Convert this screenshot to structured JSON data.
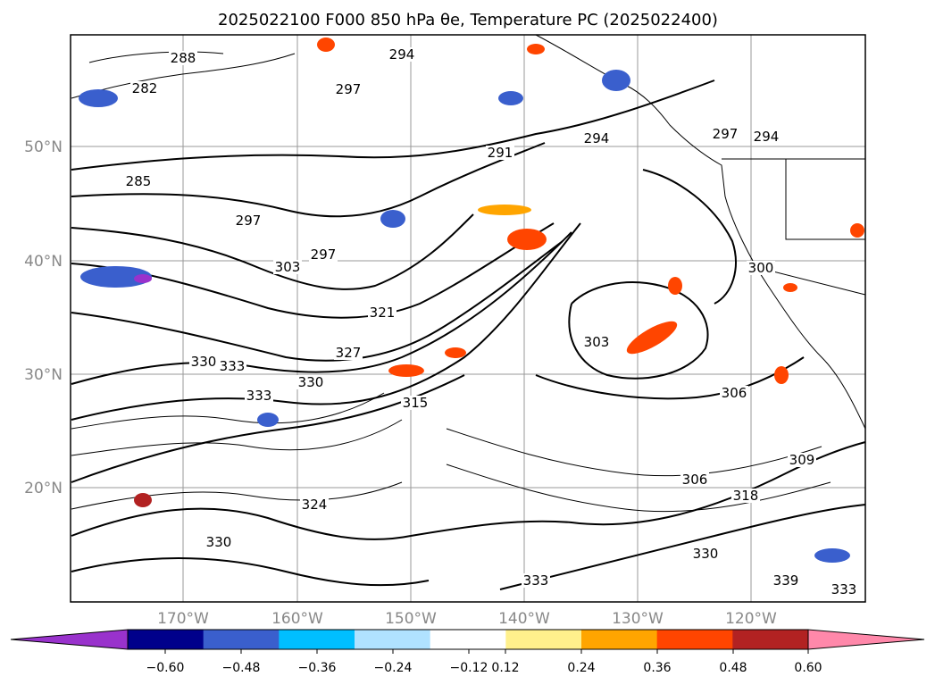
{
  "title": "2025022100 F000 850 hPa θe, Temperature PC (2025022400)",
  "lat_labels": [
    "50°N",
    "40°N",
    "30°N",
    "20°N"
  ],
  "lon_labels": [
    "170°W",
    "160°W",
    "150°W",
    "140°W",
    "130°W",
    "120°W"
  ],
  "colorbar": {
    "ticks": [
      "−0.60",
      "−0.48",
      "−0.36",
      "−0.24",
      "−0.12",
      "0.12",
      "0.24",
      "0.36",
      "0.48",
      "0.60"
    ],
    "colors": [
      "#9932cc",
      "#00008b",
      "#3a5fcd",
      "#00bfff",
      "#b0e2ff",
      "#ffffff",
      "#fff08c",
      "#ffa500",
      "#ff4500",
      "#b22222",
      "#ff88aa"
    ]
  },
  "contour_labels": [
    "288",
    "294",
    "297",
    "282",
    "291",
    "294",
    "297",
    "294",
    "285",
    "297",
    "297",
    "303",
    "321",
    "300",
    "330",
    "333",
    "330",
    "327",
    "315",
    "333",
    "303",
    "306",
    "309",
    "306",
    "318",
    "324",
    "330",
    "333",
    "339",
    "333",
    "330"
  ],
  "colors": {
    "fill_blue": "#3a5fcd",
    "fill_dark_blue": "#00008b",
    "fill_cyan": "#00bfff",
    "fill_light_blue": "#b0e2ff",
    "fill_orange": "#ffa500",
    "fill_red": "#ff4500",
    "fill_dark_red": "#b22222",
    "fill_pink": "#ff88aa",
    "fill_purple": "#9932cc"
  }
}
